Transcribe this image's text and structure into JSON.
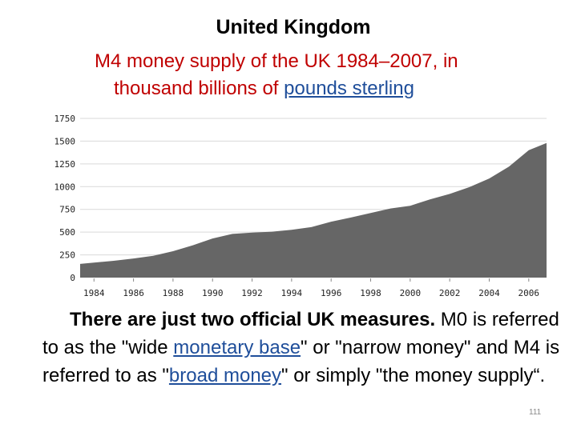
{
  "header": {
    "title": "United Kingdom",
    "subtitle_line1": "M4 money supply of the UK 1984–2007, in",
    "subtitle_line2_prefix": "thousand billions of ",
    "subtitle_link": "pounds sterling"
  },
  "body": {
    "lead": "There are just two official UK measures.",
    "p1": " M0 is referred to as the \"wide ",
    "link1": "monetary base",
    "p2": "\" or \"narrow money\" and M4 is referred to as \"",
    "link2": "broad money",
    "p3": "\" or simply \"the money supply“."
  },
  "page_number": "111",
  "colors": {
    "area_fill": "#666666",
    "grid": "#d9d9d9",
    "subtitle": "#c00000",
    "link": "#1f4e9a"
  },
  "chart_data": {
    "type": "area",
    "title": "",
    "xlabel": "",
    "ylabel": "",
    "xlim": [
      1983.3,
      2006.9
    ],
    "ylim": [
      0,
      1750
    ],
    "y_ticks": [
      "0",
      "250",
      "500",
      "750",
      "1000",
      "1250",
      "1500",
      "1750"
    ],
    "y_tick_values": [
      0,
      250,
      500,
      750,
      1000,
      1250,
      1500,
      1750
    ],
    "x_ticks": [
      "1984",
      "1986",
      "1988",
      "1990",
      "1992",
      "1994",
      "1996",
      "1998",
      "2000",
      "2002",
      "2004",
      "2006"
    ],
    "x_tick_values": [
      1984,
      1986,
      1988,
      1990,
      1992,
      1994,
      1996,
      1998,
      2000,
      2002,
      2004,
      2006
    ],
    "grid": true,
    "series": [
      {
        "x": [
          1983.3,
          1984,
          1985,
          1986,
          1987,
          1988,
          1989,
          1990,
          1991,
          1992,
          1993,
          1994,
          1995,
          1996,
          1997,
          1998,
          1999,
          2000,
          2001,
          2002,
          2003,
          2004,
          2005,
          2006,
          2006.9
        ],
        "y": [
          150,
          165,
          185,
          210,
          240,
          290,
          355,
          430,
          480,
          495,
          505,
          525,
          555,
          615,
          660,
          710,
          760,
          790,
          860,
          920,
          995,
          1090,
          1220,
          1400,
          1480
        ]
      }
    ]
  }
}
